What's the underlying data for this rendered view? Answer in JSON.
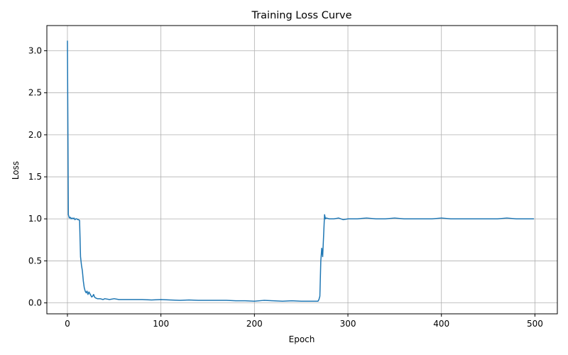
{
  "chart_data": {
    "type": "line",
    "title": "Training Loss Curve",
    "xlabel": "Epoch",
    "ylabel": "Loss",
    "xlim": [
      -22,
      524
    ],
    "ylim": [
      -0.13,
      3.3
    ],
    "xticks": [
      0,
      100,
      200,
      300,
      400,
      500
    ],
    "yticks": [
      0.0,
      0.5,
      1.0,
      1.5,
      2.0,
      2.5,
      3.0
    ],
    "xtick_labels": [
      "0",
      "100",
      "200",
      "300",
      "400",
      "500"
    ],
    "ytick_labels": [
      "0.0",
      "0.5",
      "1.0",
      "1.5",
      "2.0",
      "2.5",
      "3.0"
    ],
    "grid": true,
    "line_color": "#1f77b4",
    "series": [
      {
        "x": [
          0,
          1,
          2,
          3,
          4,
          5,
          6,
          7,
          8,
          9,
          10,
          11,
          12,
          13,
          14,
          15,
          16,
          17,
          18,
          19,
          20,
          21,
          22,
          23,
          24,
          25,
          26,
          27,
          28,
          29,
          30,
          32,
          35,
          38,
          40,
          45,
          50,
          55,
          60,
          70,
          80,
          90,
          100,
          110,
          120,
          130,
          140,
          150,
          160,
          170,
          180,
          190,
          200,
          210,
          220,
          230,
          240,
          250,
          260,
          265,
          268,
          269,
          270,
          271,
          272,
          273,
          274,
          275,
          276,
          277,
          280,
          285,
          290,
          295,
          300,
          310,
          320,
          330,
          340,
          350,
          360,
          370,
          380,
          390,
          400,
          410,
          420,
          430,
          440,
          450,
          460,
          470,
          480,
          490,
          499
        ],
        "y": [
          3.12,
          1.05,
          1.01,
          1.02,
          1.0,
          1.01,
          1.0,
          1.01,
          0.99,
          1.0,
          1.0,
          0.99,
          0.99,
          0.98,
          0.55,
          0.45,
          0.38,
          0.26,
          0.18,
          0.14,
          0.12,
          0.14,
          0.1,
          0.13,
          0.11,
          0.09,
          0.07,
          0.08,
          0.1,
          0.07,
          0.06,
          0.05,
          0.05,
          0.04,
          0.05,
          0.04,
          0.05,
          0.04,
          0.04,
          0.04,
          0.04,
          0.035,
          0.04,
          0.035,
          0.03,
          0.035,
          0.03,
          0.03,
          0.03,
          0.03,
          0.025,
          0.025,
          0.02,
          0.03,
          0.025,
          0.02,
          0.025,
          0.02,
          0.02,
          0.02,
          0.02,
          0.04,
          0.08,
          0.5,
          0.65,
          0.55,
          0.8,
          1.05,
          1.0,
          1.01,
          1.0,
          1.0,
          1.01,
          0.99,
          1.0,
          1.0,
          1.01,
          1.0,
          1.0,
          1.01,
          1.0,
          1.0,
          1.0,
          1.0,
          1.01,
          1.0,
          1.0,
          1.0,
          1.0,
          1.0,
          1.0,
          1.01,
          1.0,
          1.0,
          1.0
        ]
      }
    ]
  }
}
